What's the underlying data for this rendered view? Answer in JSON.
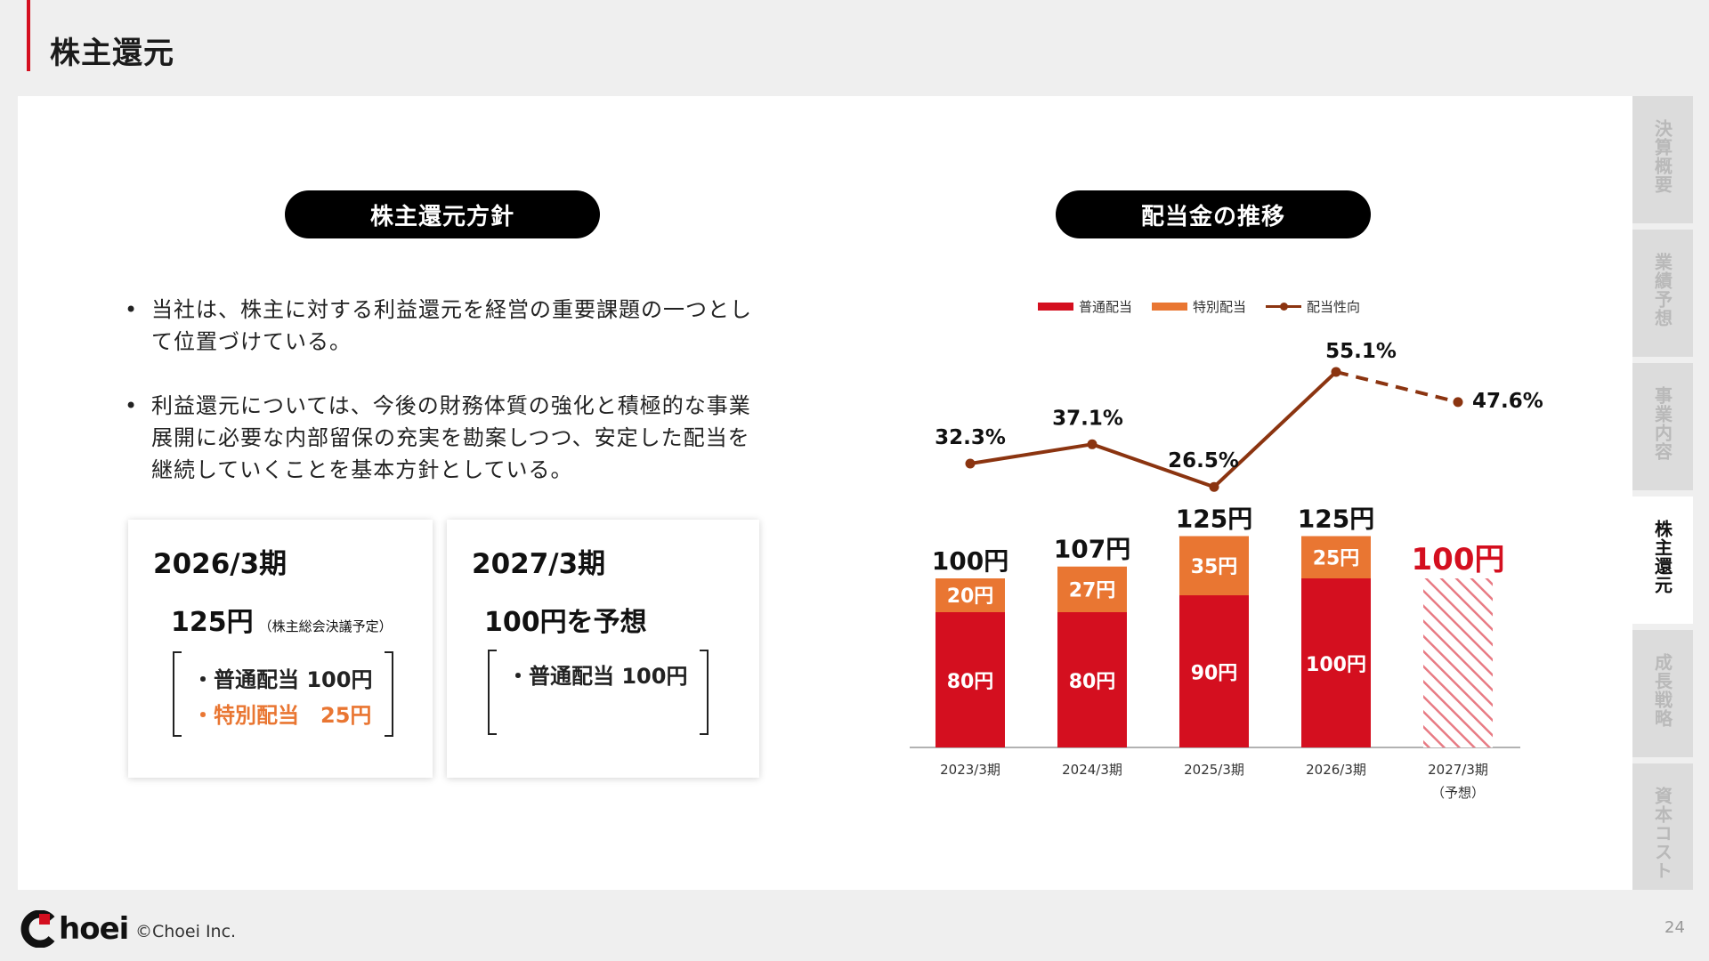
{
  "header": {
    "title": "株主還元"
  },
  "left": {
    "heading": "株主還元方針",
    "bullets": [
      {
        "mark": "•",
        "text": "当社は、株主に対する利益還元を経営の重要課題の一つとして位置づけている。"
      },
      {
        "mark": "•",
        "text": "利益還元については、今後の財務体質の強化と積極的な事業展開に必要な内部留保の充実を勘案しつつ、安定した配当を継続していくことを基本方針としている。"
      }
    ],
    "card_2026": {
      "title": "2026/3期",
      "amount": "125円",
      "note": "（株主総会決議予定）",
      "lines": [
        "・普通配当 100円",
        "・特別配当　25円"
      ]
    },
    "card_2027": {
      "title": "2027/3期",
      "amount": "100円を予想",
      "lines": [
        "・普通配当 100円"
      ]
    }
  },
  "right": {
    "heading": "配当金の推移",
    "legend": [
      "普通配当",
      "特別配当",
      "配当性向"
    ]
  },
  "chart_data": {
    "type": "bar",
    "categories": [
      "2023/3期",
      "2024/3期",
      "2025/3期",
      "2026/3期",
      "2027/3期"
    ],
    "category_sublabels": [
      "",
      "",
      "",
      "",
      "（予想）"
    ],
    "series": [
      {
        "name": "普通配当",
        "values": [
          80,
          80,
          90,
          100,
          100
        ],
        "labels": [
          "80円",
          "80円",
          "90円",
          "100円",
          ""
        ],
        "color": "#d40f1f"
      },
      {
        "name": "特別配当",
        "values": [
          20,
          27,
          35,
          25,
          0
        ],
        "labels": [
          "20円",
          "27円",
          "35円",
          "25円",
          ""
        ],
        "color": "#e97632"
      },
      {
        "name": "配当性向",
        "values": [
          32.3,
          37.1,
          26.5,
          55.1,
          47.6
        ],
        "labels": [
          "32.3%",
          "37.1%",
          "26.5%",
          "55.1%",
          "47.6%"
        ],
        "color": "#8b3410",
        "type": "line",
        "dashed_from_index": 3
      }
    ],
    "totals": [
      100,
      107,
      125,
      125,
      100
    ],
    "total_labels": [
      "100円",
      "107円",
      "125円",
      "125円",
      "100円"
    ],
    "forecast_index": 4,
    "forecast_style": "hatched",
    "forecast_color": "#d40f1f"
  },
  "side_tabs": [
    {
      "label": "決算概要",
      "active": false
    },
    {
      "label": "業績予想",
      "active": false
    },
    {
      "label": "事業内容",
      "active": false
    },
    {
      "label": "株主還元",
      "active": true
    },
    {
      "label": "成長戦略",
      "active": false
    },
    {
      "label": "資本コスト",
      "active": false
    }
  ],
  "footer": {
    "logo_text": "hoei",
    "copyright": "©Choei Inc.",
    "page": "24"
  },
  "colors": {
    "accent": "#d40f1f",
    "orange": "#e97632",
    "line": "#8b3410"
  }
}
